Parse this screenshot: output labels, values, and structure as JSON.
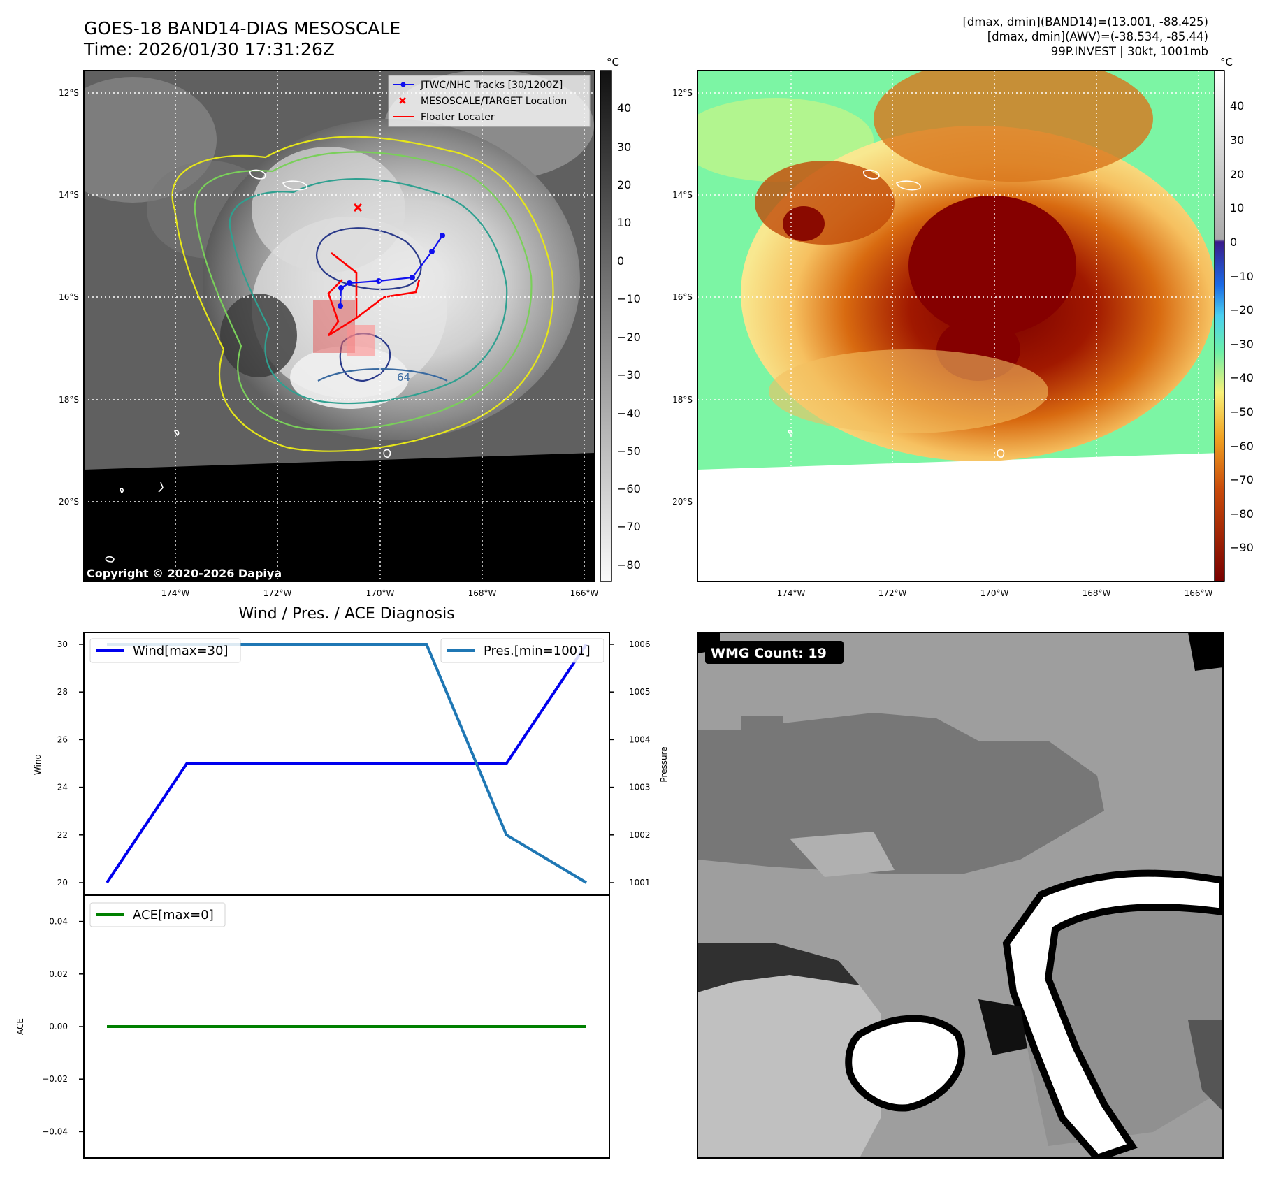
{
  "header": {
    "title": "GOES-18 BAND14-DIAS MESOSCALE",
    "time": "Time: 2026/01/30 17:31:26Z",
    "info_lines": [
      "[dmax, dmin](BAND14)=(13.001, -88.425)",
      "[dmax, dmin](AWV)=(-38.534, -85.44)",
      "99P.INVEST | 30kt, 1001mb"
    ]
  },
  "map_common": {
    "lat_labels": [
      "12°S",
      "14°S",
      "16°S",
      "18°S",
      "20°S"
    ],
    "lon_labels": [
      "174°W",
      "172°W",
      "170°W",
      "168°W",
      "166°W"
    ],
    "colorbar_unit": "°C"
  },
  "left_map": {
    "colorbar_ticks": [
      "40",
      "30",
      "20",
      "10",
      "0",
      "−10",
      "−20",
      "−30",
      "−40",
      "−50",
      "−60",
      "−70",
      "−80"
    ],
    "legend": [
      {
        "label": "JTWC/NHC Tracks [30/1200Z]",
        "color": "#1010ee"
      },
      {
        "label": "MESOSCALE/TARGET Location",
        "color": "#ff0000"
      },
      {
        "label": "Floater Locater",
        "color": "#ff0000"
      }
    ],
    "contour_label": "64",
    "copyright": "Copyright © 2020-2026 Dapiya"
  },
  "right_map": {
    "colorbar_ticks": [
      "40",
      "30",
      "20",
      "10",
      "0",
      "−10",
      "−20",
      "−30",
      "−40",
      "−50",
      "−60",
      "−70",
      "−80",
      "−90"
    ]
  },
  "diagnosis": {
    "title": "Wind / Pres. / ACE Diagnosis",
    "wind_axis_label": "Wind",
    "pressure_axis_label": "Pressure",
    "ace_axis_label": "ACE",
    "wind_ticks": [
      "30",
      "28",
      "26",
      "24",
      "22",
      "20"
    ],
    "pressure_ticks": [
      "1006",
      "1005",
      "1004",
      "1003",
      "1002",
      "1001"
    ],
    "ace_ticks": [
      "0.04",
      "0.02",
      "0.00",
      "−0.02",
      "−0.04"
    ],
    "wind_legend": "Wind[max=30]",
    "pressure_legend": "Pres.[min=1001]",
    "ace_legend": "ACE[max=0]",
    "colors": {
      "wind": "#0000ee",
      "pressure": "#1f77b4",
      "ace": "#008000"
    }
  },
  "wmg": {
    "label": "WMG Count: 19"
  },
  "chart_data": [
    {
      "type": "line",
      "title": "Wind / Pres. / ACE Diagnosis",
      "x": [
        0,
        1,
        2,
        3,
        4,
        5,
        6
      ],
      "series": [
        {
          "name": "Wind[max=30]",
          "axis": "left",
          "ylabel": "Wind",
          "ylim": [
            20,
            30
          ],
          "values": [
            20,
            25,
            25,
            25,
            25,
            25,
            30
          ]
        },
        {
          "name": "Pres.[min=1001]",
          "axis": "right",
          "ylabel": "Pressure",
          "ylim": [
            1001,
            1006
          ],
          "values": [
            1006,
            1006,
            1006,
            1006,
            1006,
            1002,
            1001
          ]
        }
      ],
      "legend": [
        "upper-left",
        "upper-right"
      ],
      "grid": false
    },
    {
      "type": "line",
      "x": [
        0,
        1,
        2,
        3,
        4,
        5,
        6
      ],
      "series": [
        {
          "name": "ACE[max=0]",
          "ylabel": "ACE",
          "ylim": [
            -0.05,
            0.05
          ],
          "values": [
            0,
            0,
            0,
            0,
            0,
            0,
            0
          ]
        }
      ],
      "legend": "upper-left",
      "grid": false
    }
  ]
}
